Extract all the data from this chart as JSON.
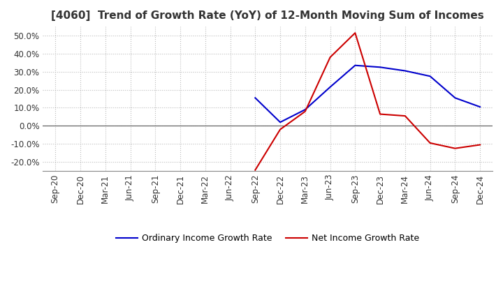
{
  "title": "[4060]  Trend of Growth Rate (YoY) of 12-Month Moving Sum of Incomes",
  "title_fontsize": 11,
  "ylim": [
    -0.25,
    0.55
  ],
  "yticks": [
    -0.2,
    -0.1,
    0.0,
    0.1,
    0.2,
    0.3,
    0.4,
    0.5
  ],
  "background_color": "#ffffff",
  "grid_color": "#bbbbbb",
  "ordinary_color": "#0000cc",
  "net_color": "#cc0000",
  "legend_labels": [
    "Ordinary Income Growth Rate",
    "Net Income Growth Rate"
  ],
  "x_labels": [
    "Sep-20",
    "Dec-20",
    "Mar-21",
    "Jun-21",
    "Sep-21",
    "Dec-21",
    "Mar-22",
    "Jun-22",
    "Sep-22",
    "Dec-22",
    "Mar-23",
    "Jun-23",
    "Sep-23",
    "Dec-23",
    "Mar-24",
    "Jun-24",
    "Sep-24",
    "Dec-24"
  ],
  "ordinary_x": [
    "Sep-22",
    "Dec-22",
    "Mar-23",
    "Jun-23",
    "Sep-23",
    "Dec-23",
    "Mar-24",
    "Jun-24",
    "Sep-24",
    "Dec-24"
  ],
  "ordinary_y": [
    0.155,
    0.02,
    0.09,
    0.215,
    0.335,
    0.325,
    0.305,
    0.275,
    0.155,
    0.105
  ],
  "net_x": [
    "Sep-22",
    "Dec-22",
    "Mar-23",
    "Jun-23",
    "Sep-23",
    "Dec-23",
    "Mar-24",
    "Jun-24",
    "Sep-24",
    "Dec-24"
  ],
  "net_y": [
    -0.245,
    -0.02,
    0.08,
    0.38,
    0.515,
    0.065,
    0.055,
    -0.095,
    -0.125,
    -0.105
  ]
}
